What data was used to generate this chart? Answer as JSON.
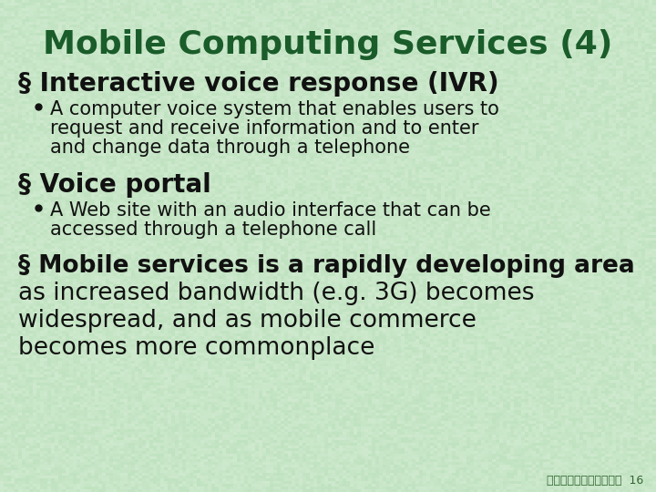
{
  "title": "Mobile Computing Services (4)",
  "title_color": "#1a5c2a",
  "title_fontsize": 26,
  "bg_color": "#c8e8c8",
  "section1_text": "§ Interactive voice response (IVR)",
  "section1_color": "#111111",
  "section1_fontsize": 20,
  "bullet1_lines": [
    "A computer voice system that enables users to",
    "request and receive information and to enter",
    "and change data through a telephone"
  ],
  "bullet1_color": "#111111",
  "bullet1_fontsize": 15,
  "section2_text": "§ Voice portal",
  "section2_color": "#111111",
  "section2_fontsize": 20,
  "bullet2_lines": [
    "A Web site with an audio interface that can be",
    "accessed through a telephone call"
  ],
  "bullet2_color": "#111111",
  "bullet2_fontsize": 15,
  "section3_lines": [
    "§ Mobile services is a rapidly developing area",
    "as increased bandwidth (e.g. 3G) becomes",
    "widespread, and as mobile commerce",
    "becomes more commonplace"
  ],
  "section3_color": "#111111",
  "section3_fontsize": 19,
  "footer_text": "淡江大學資管系所候永昌  16",
  "footer_color": "#336633",
  "footer_fontsize": 9
}
